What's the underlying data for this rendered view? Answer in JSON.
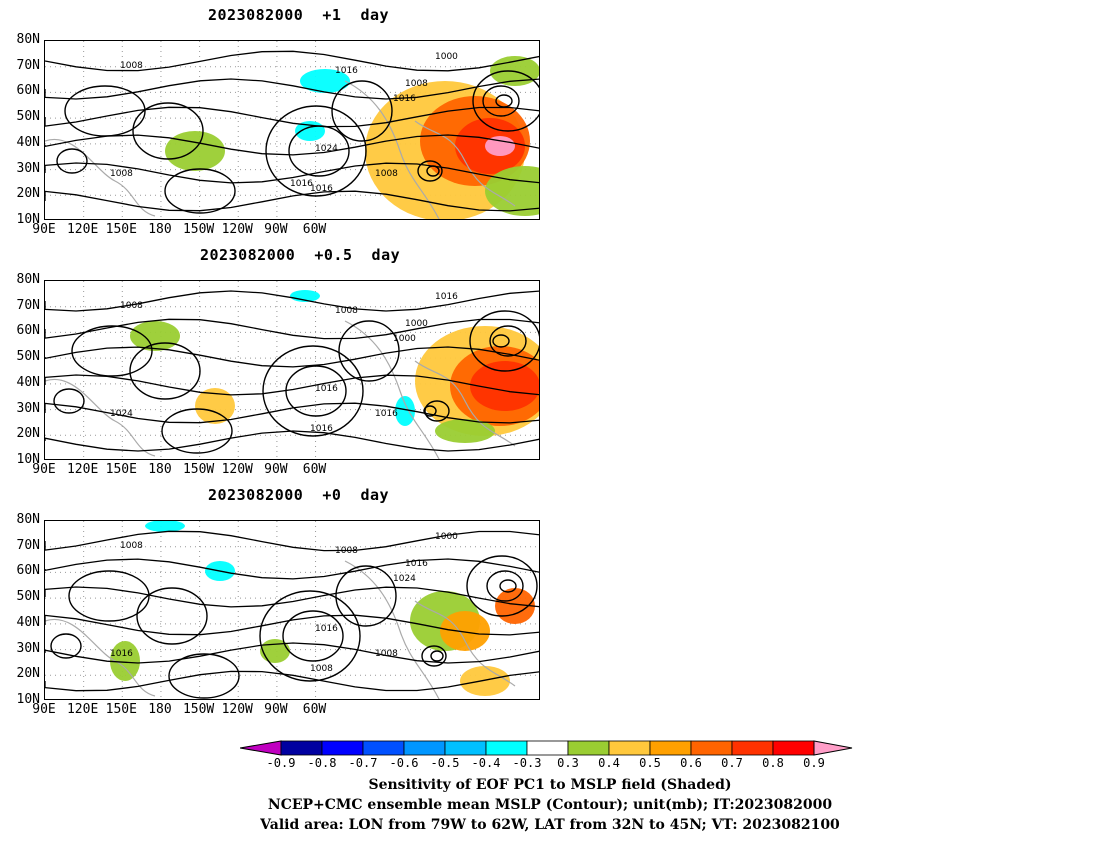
{
  "panels": [
    {
      "title": "2023082000  +1  day",
      "contour_labels": [
        "1008",
        "1016",
        "1008",
        "1000",
        "1016",
        "1016",
        "1024",
        "1008",
        "1008",
        "1016"
      ]
    },
    {
      "title": "2023082000  +0.5  day",
      "contour_labels": [
        "1008",
        "1008",
        "1000",
        "1016",
        "1000",
        "1016",
        "1016",
        "1024",
        "1016"
      ]
    },
    {
      "title": "2023082000  +0  day",
      "contour_labels": [
        "1008",
        "1008",
        "1016",
        "1000",
        "1024",
        "1008",
        "1016",
        "1016",
        "1008"
      ]
    }
  ],
  "lat_labels": [
    "80N",
    "70N",
    "60N",
    "50N",
    "40N",
    "30N",
    "20N",
    "10N"
  ],
  "lon_labels": [
    "90E",
    "120E",
    "150E",
    "180",
    "150W",
    "120W",
    "90W",
    "60W"
  ],
  "colorbar": {
    "labels": [
      "-0.9",
      "-0.8",
      "-0.7",
      "-0.6",
      "-0.5",
      "-0.4",
      "-0.3",
      "0.3",
      "0.4",
      "0.5",
      "0.6",
      "0.7",
      "0.8",
      "0.9"
    ],
    "colors": [
      "#c000c0",
      "#0000a0",
      "#0000ff",
      "#0050ff",
      "#0096ff",
      "#00c0ff",
      "#00ffff",
      "#ffffff",
      "#9acd32",
      "#ffc83c",
      "#ffa000",
      "#ff6400",
      "#ff3200",
      "#ff0000",
      "#ff9ec8"
    ]
  },
  "captions": [
    "Sensitivity of EOF PC1 to MSLP field (Shaded)",
    "NCEP+CMC ensemble mean MSLP (Contour); unit(mb); IT:2023082000",
    "Valid area: LON from 79W to 62W, LAT from 32N to 45N; VT: 2023082100"
  ]
}
